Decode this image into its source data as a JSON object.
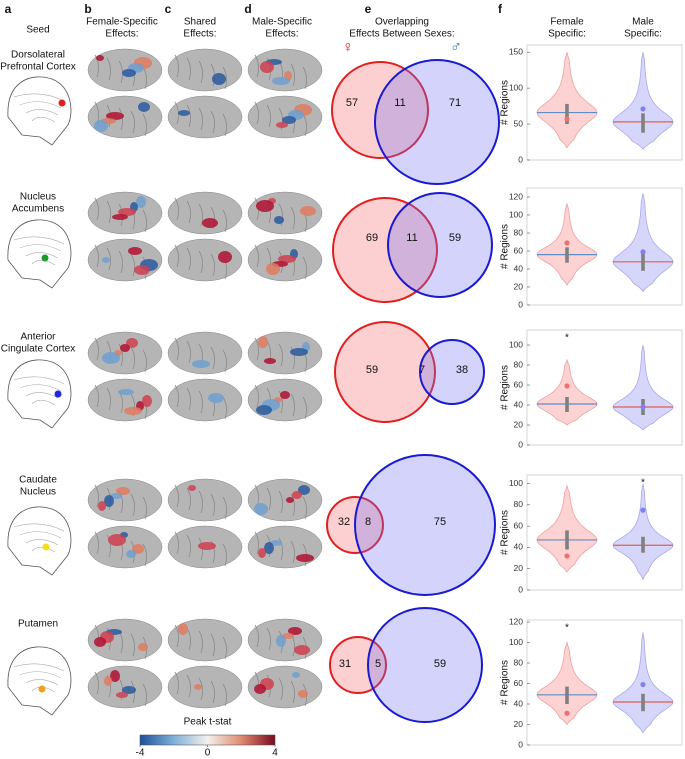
{
  "panel_labels": [
    "a",
    "b",
    "c",
    "d",
    "e",
    "f"
  ],
  "headers": {
    "seed": "Seed",
    "female": [
      "Female-Specific",
      "Effects:"
    ],
    "shared": [
      "Shared",
      "Effects:"
    ],
    "male": [
      "Male-Specific",
      "Effects:"
    ],
    "overlap": [
      "Overlapping",
      "Effects Between Sexes:"
    ],
    "female_specific": [
      "Female",
      "Specific:"
    ],
    "male_specific": [
      "Male",
      "Specific:"
    ]
  },
  "sex_symbols": {
    "female": "♀",
    "male": "♂"
  },
  "rows": [
    {
      "seed": [
        "Dorsolateral",
        "Prefrontal Cortex"
      ],
      "seed_color": "#e02020",
      "venn": {
        "female": 57,
        "shared": 11,
        "male": 71
      },
      "violin_axis": {
        "label": "# Regions",
        "ylim": [
          0,
          160
        ],
        "yticks": [
          0,
          50,
          100,
          150
        ]
      },
      "violins": {
        "female": {
          "min": 17,
          "max": 150,
          "q1": 50,
          "median": 66,
          "q3": 78
        },
        "male": {
          "min": 15,
          "max": 150,
          "q1": 38,
          "median": 53,
          "q3": 65
        }
      },
      "stars": {}
    },
    {
      "seed": [
        "Nucleus",
        "Accumbens"
      ],
      "seed_color": "#1a9a2a",
      "venn": {
        "female": 69,
        "shared": 11,
        "male": 59
      },
      "violin_axis": {
        "label": "# Regions",
        "ylim": [
          0,
          130
        ],
        "yticks": [
          0,
          20,
          40,
          60,
          80,
          100,
          120
        ]
      },
      "violins": {
        "female": {
          "min": 22,
          "max": 113,
          "q1": 47,
          "median": 56,
          "q3": 64
        },
        "male": {
          "min": 15,
          "max": 124,
          "q1": 38,
          "median": 48,
          "q3": 60
        }
      },
      "stars": {}
    },
    {
      "seed": [
        "Anterior",
        "Cingulate Cortex"
      ],
      "seed_color": "#1a2ae0",
      "venn": {
        "female": 59,
        "shared": 7,
        "male": 38
      },
      "violin_axis": {
        "label": "# Regions",
        "ylim": [
          0,
          115
        ],
        "yticks": [
          0,
          20,
          40,
          60,
          80,
          100
        ]
      },
      "violins": {
        "female": {
          "min": 20,
          "max": 85,
          "q1": 33,
          "median": 41,
          "q3": 48
        },
        "male": {
          "min": 15,
          "max": 100,
          "q1": 30,
          "median": 38,
          "q3": 46
        }
      },
      "stars": {
        "female": "*"
      }
    },
    {
      "seed": [
        "Caudate",
        "Nucleus"
      ],
      "seed_color": "#f0e020",
      "venn": {
        "female": 32,
        "shared": 8,
        "male": 75
      },
      "violin_axis": {
        "label": "# Regions",
        "ylim": [
          0,
          108
        ],
        "yticks": [
          0,
          20,
          40,
          60,
          80,
          100
        ]
      },
      "violins": {
        "female": {
          "min": 17,
          "max": 98,
          "q1": 38,
          "median": 47,
          "q3": 56
        },
        "male": {
          "min": 10,
          "max": 100,
          "q1": 35,
          "median": 42,
          "q3": 50
        }
      },
      "stars": {
        "male": "*"
      }
    },
    {
      "seed": [
        "Putamen"
      ],
      "seed_color": "#f0a020",
      "venn": {
        "female": 31,
        "shared": 5,
        "male": 59
      },
      "violin_axis": {
        "label": "# Regions",
        "ylim": [
          0,
          122
        ],
        "yticks": [
          0,
          20,
          40,
          60,
          80,
          100,
          120
        ]
      },
      "violins": {
        "female": {
          "min": 20,
          "max": 100,
          "q1": 40,
          "median": 49,
          "q3": 57
        },
        "male": {
          "min": 12,
          "max": 110,
          "q1": 33,
          "median": 42,
          "q3": 50
        }
      },
      "stars": {
        "female": "*"
      }
    }
  ],
  "colorbar": {
    "label": "Peak t-stat",
    "lim": [
      -4,
      4
    ],
    "ticks": [
      -4,
      0,
      4
    ]
  }
}
